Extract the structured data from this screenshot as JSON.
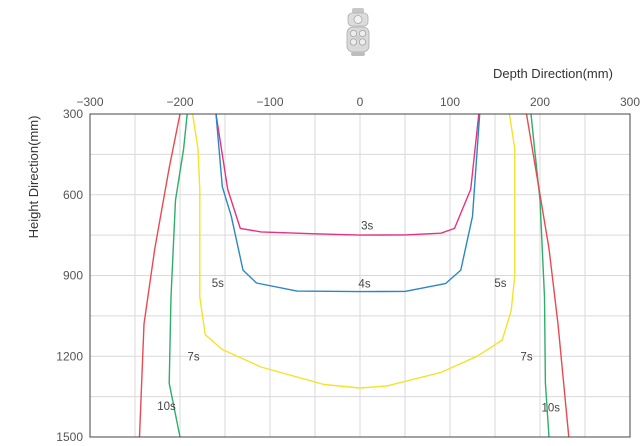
{
  "chart_data": {
    "type": "line",
    "xlabel": "Depth Direction(mm)",
    "ylabel": "Height Direction(mm)",
    "xlim": [
      -300,
      300
    ],
    "ylim": [
      300,
      1500
    ],
    "y_inverted": true,
    "x_axis_position": "top",
    "grid": true,
    "x_ticks": [
      -300,
      -200,
      -100,
      0,
      100,
      200,
      300
    ],
    "y_ticks": [
      300,
      600,
      900,
      1200,
      1500
    ],
    "x_tick_labels": [
      "−300",
      "−200",
      "−100",
      "0",
      "100",
      "200",
      "300"
    ],
    "y_tick_labels": [
      "300",
      "600",
      "900",
      "1200",
      "1500"
    ],
    "series": [
      {
        "color": "#e8317f",
        "left": [
          [
            -160,
            300
          ],
          [
            -147,
            580
          ],
          [
            -133,
            725
          ],
          [
            -110,
            738
          ],
          [
            -50,
            745
          ],
          [
            0,
            750
          ],
          [
            50,
            749
          ],
          [
            90,
            743
          ],
          [
            105,
            725
          ],
          [
            123,
            580
          ],
          [
            132,
            300
          ]
        ],
        "right": [],
        "labels": [
          {
            "text": "3s",
            "x": 8,
            "y": 715
          }
        ]
      },
      {
        "color": "#2c86c4",
        "left": [
          [
            -160,
            300
          ],
          [
            -153,
            570
          ],
          [
            -143,
            680
          ],
          [
            -130,
            880
          ],
          [
            -115,
            928
          ],
          [
            -70,
            958
          ],
          [
            0,
            960
          ],
          [
            50,
            959
          ],
          [
            95,
            930
          ],
          [
            112,
            880
          ],
          [
            125,
            680
          ],
          [
            133,
            300
          ]
        ],
        "right": [],
        "labels": [
          {
            "text": "4s",
            "x": 5,
            "y": 930
          }
        ]
      },
      {
        "color": "#f5e22a",
        "left": [
          [
            -186,
            300
          ],
          [
            -180,
            430
          ],
          [
            -178,
            580
          ],
          [
            -178,
            980
          ],
          [
            -172,
            1120
          ],
          [
            -153,
            1175
          ],
          [
            -110,
            1240
          ],
          [
            -40,
            1305
          ],
          [
            0,
            1318
          ],
          [
            30,
            1310
          ],
          [
            90,
            1260
          ],
          [
            130,
            1200
          ],
          [
            158,
            1140
          ],
          [
            168,
            1030
          ],
          [
            172,
            900
          ],
          [
            172,
            430
          ],
          [
            166,
            300
          ]
        ],
        "right": [],
        "labels": [
          {
            "text": "5s",
            "x": -158,
            "y": 928
          },
          {
            "text": "5s",
            "x": 156,
            "y": 928
          }
        ]
      },
      {
        "color": "#2ead6c",
        "left": [
          [
            -192,
            300
          ],
          [
            -196,
            430
          ],
          [
            -205,
            620
          ],
          [
            -210,
            980
          ],
          [
            -212,
            1300
          ],
          [
            -200,
            1500
          ]
        ],
        "right": [
          [
            190,
            300
          ],
          [
            194,
            430
          ],
          [
            200,
            620
          ],
          [
            205,
            980
          ],
          [
            206,
            1300
          ],
          [
            210,
            1500
          ]
        ],
        "labels": [
          {
            "text": "7s",
            "x": -185,
            "y": 1200
          },
          {
            "text": "7s",
            "x": 185,
            "y": 1200
          }
        ]
      },
      {
        "color": "#e84a52",
        "left": [
          [
            -200,
            300
          ],
          [
            -212,
            500
          ],
          [
            -228,
            800
          ],
          [
            -240,
            1080
          ],
          [
            -245,
            1500
          ]
        ],
        "right": [
          [
            185,
            300
          ],
          [
            195,
            500
          ],
          [
            210,
            800
          ],
          [
            220,
            1080
          ],
          [
            232,
            1500
          ]
        ],
        "labels": [
          {
            "text": "10s",
            "x": -215,
            "y": 1385
          },
          {
            "text": "10s",
            "x": 212,
            "y": 1390
          }
        ]
      }
    ]
  }
}
